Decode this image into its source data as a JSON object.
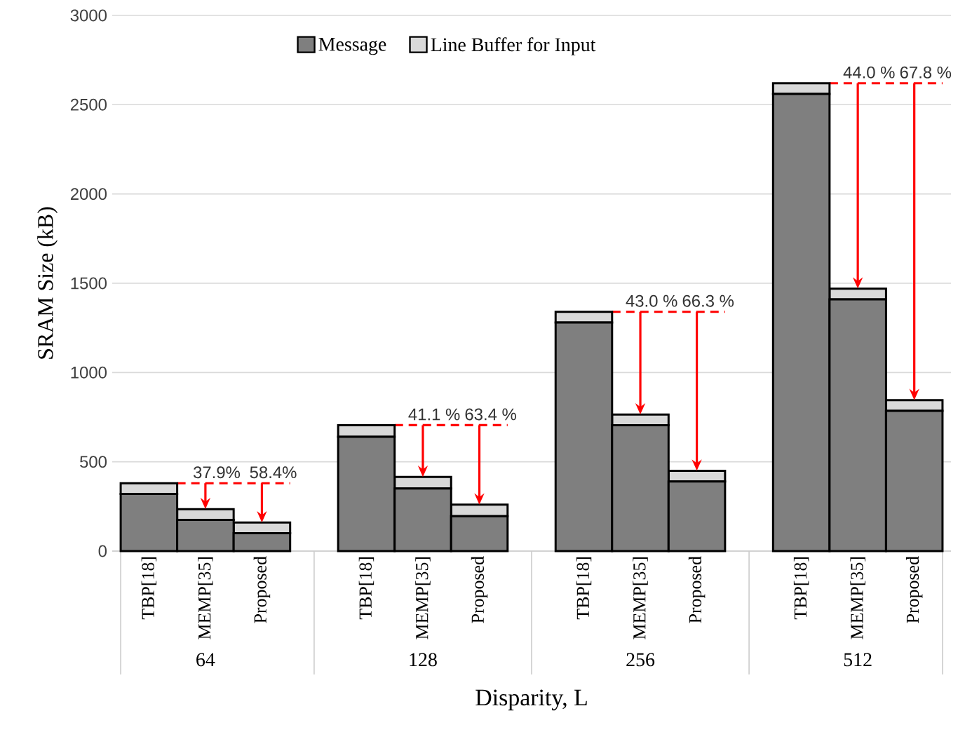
{
  "chart_data": {
    "type": "bar",
    "stacked": true,
    "categories": [
      "TBP[18]",
      "MEMP[35]",
      "Proposed",
      "TBP[18]",
      "MEMP[35]",
      "Proposed",
      "TBP[18]",
      "MEMP[35]",
      "Proposed",
      "TBP[18]",
      "MEMP[35]",
      "Proposed"
    ],
    "series": [
      {
        "name": "Message",
        "color": "#7f7f7f",
        "values": [
          320,
          175,
          100,
          640,
          350,
          195,
          1280,
          705,
          390,
          2560,
          1410,
          785
        ]
      },
      {
        "name": "Line Buffer for Input",
        "color": "#d9d9d9",
        "values": [
          60,
          60,
          60,
          65,
          65,
          65,
          60,
          60,
          60,
          60,
          60,
          60
        ]
      }
    ],
    "ylabel": "SRAM Size (kB)",
    "xlabel": "Disparity, L",
    "ylim": [
      0,
      3000
    ],
    "yticks": [
      0,
      500,
      1000,
      1500,
      2000,
      2500,
      3000
    ],
    "grid": "y",
    "legend": "top",
    "ref_lines": [
      {
        "axis": "y",
        "value": 380,
        "color": "#ff0000",
        "line_style": "dashed"
      },
      {
        "axis": "y",
        "value": 705,
        "color": "#ff0000",
        "line_style": "dashed"
      },
      {
        "axis": "y",
        "value": 1340,
        "color": "#ff0000",
        "line_style": "dashed"
      },
      {
        "axis": "y",
        "value": 2620,
        "color": "#ff0000",
        "line_style": "dashed"
      }
    ],
    "annotations": [
      "37.9%",
      "58.4%",
      "41.1 %",
      "63.4 %",
      "43.0 %",
      "66.3 %",
      "44.0 %",
      "67.8 %",
      "64",
      "128",
      "256",
      "512"
    ]
  }
}
